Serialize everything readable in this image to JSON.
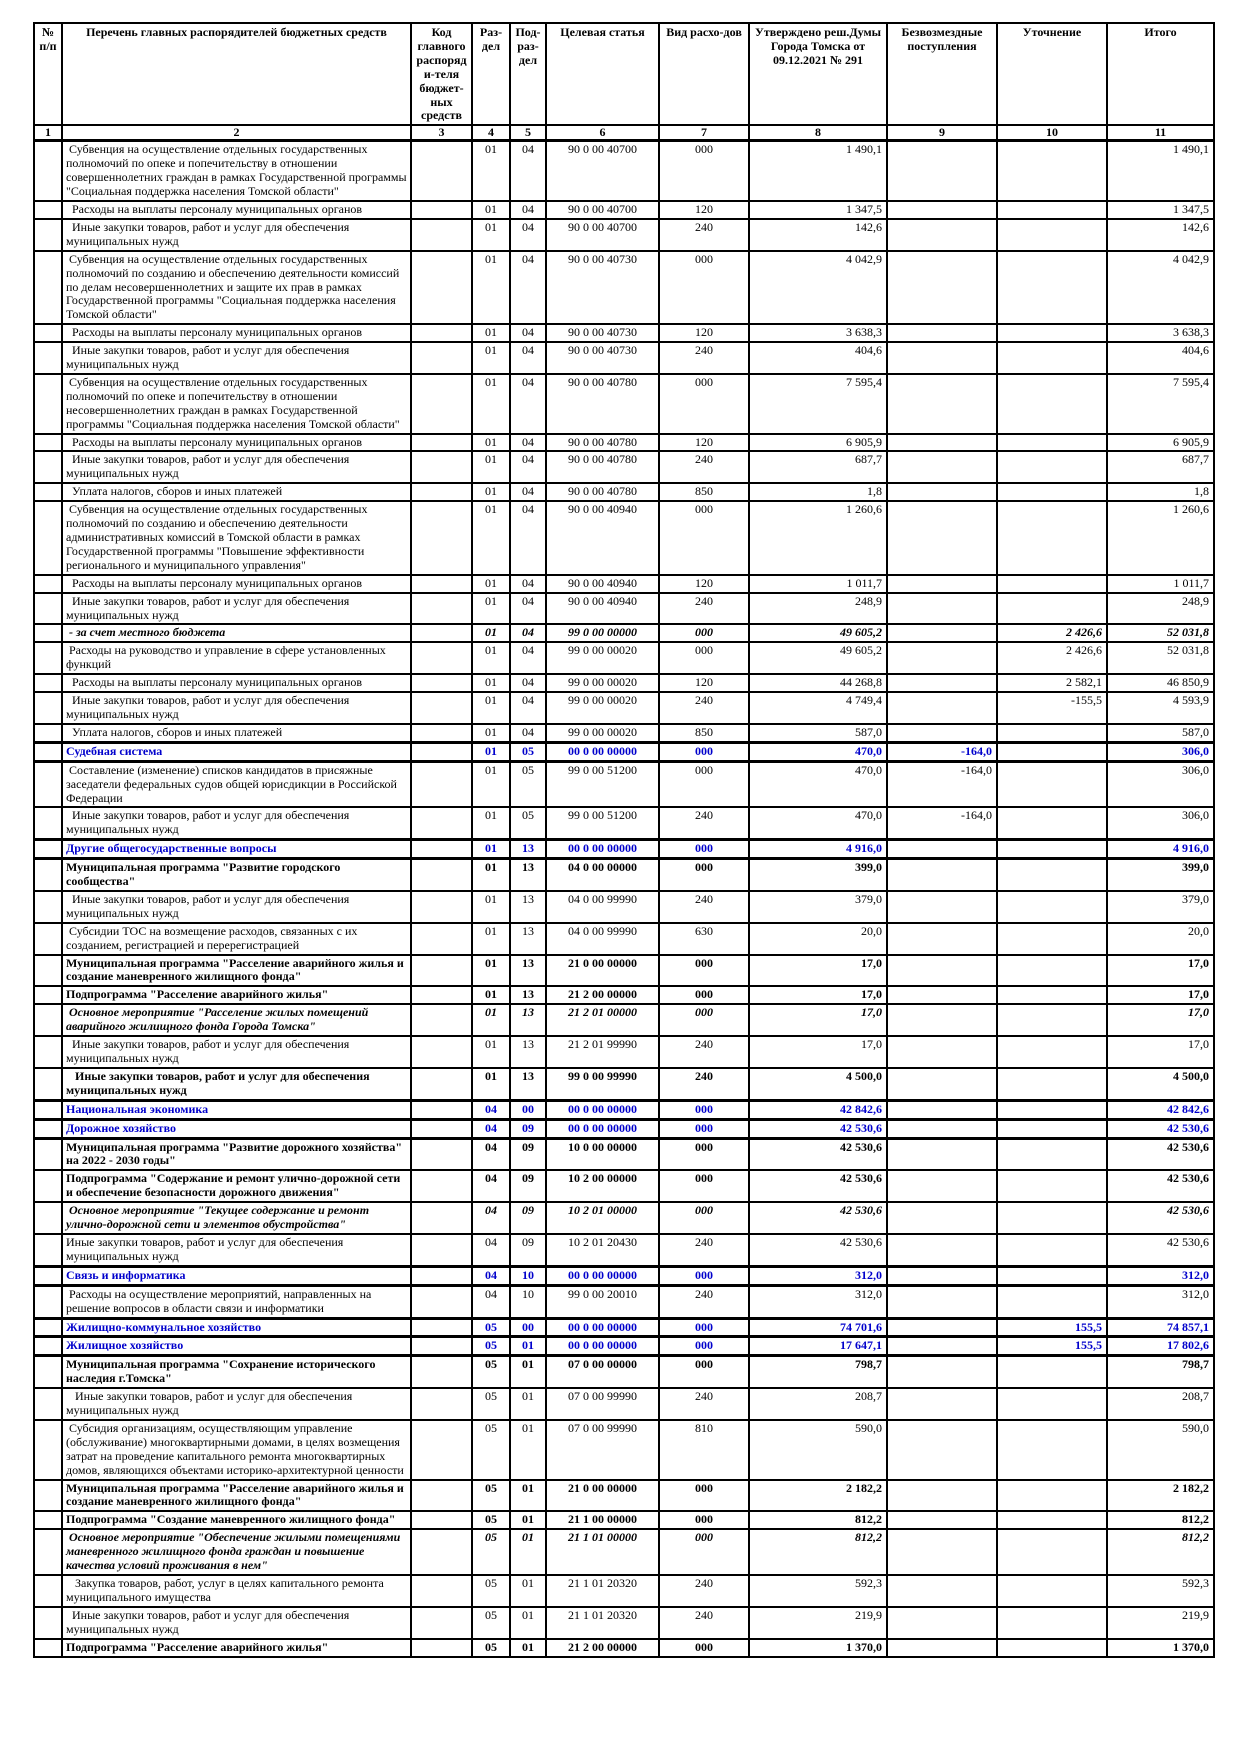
{
  "colors": {
    "section_blue": "#0000CC",
    "border": "#000000",
    "page_bg": "#FFFFFF"
  },
  "table": {
    "columns": [
      {
        "num": "1",
        "label": "№ п/п"
      },
      {
        "num": "2",
        "label": "Перечень главных распорядителей бюджетных средств"
      },
      {
        "num": "3",
        "label": "Код главного распоряди-теля бюджет-ных средств"
      },
      {
        "num": "4",
        "label": "Раз-дел"
      },
      {
        "num": "5",
        "label": "Под-раз-дел"
      },
      {
        "num": "6",
        "label": "Целевая статья"
      },
      {
        "num": "7",
        "label": "Вид расхо-дов"
      },
      {
        "num": "8",
        "label": "Утверждено реш.Думы Города Томска от 09.12.2021 № 291"
      },
      {
        "num": "9",
        "label": "Безвозмездные поступления"
      },
      {
        "num": "10",
        "label": "Уточнение"
      },
      {
        "num": "11",
        "label": "Итого"
      }
    ],
    "rows": [
      {
        "name": " Субвенция на осуществление отдельных государственных полномочий по опеке и попечительству в отношении совершеннолетних граждан в рамках Государственной программы \"Социальная поддержка населения Томской области\"",
        "code": "",
        "rzd": "01",
        "pdr": "04",
        "target": "90 0 00 40700",
        "vid": "000",
        "approved": "1 490,1",
        "gratuitous": "",
        "adjustment": "",
        "total": "1 490,1",
        "style": "normal"
      },
      {
        "name": "  Расходы на выплаты персоналу муниципальных органов",
        "code": "",
        "rzd": "01",
        "pdr": "04",
        "target": "90 0 00 40700",
        "vid": "120",
        "approved": "1 347,5",
        "gratuitous": "",
        "adjustment": "",
        "total": "1 347,5",
        "style": "normal"
      },
      {
        "name": "  Иные закупки товаров, работ и услуг для обеспечения муниципальных нужд",
        "code": "",
        "rzd": "01",
        "pdr": "04",
        "target": "90 0 00 40700",
        "vid": "240",
        "approved": "142,6",
        "gratuitous": "",
        "adjustment": "",
        "total": "142,6",
        "style": "normal"
      },
      {
        "name": " Субвенция на осуществление отдельных государственных полномочий по созданию и обеспечению деятельности комиссий по делам несовершеннолетних и защите их прав в рамках Государственной программы \"Социальная поддержка населения Томской области\"",
        "code": "",
        "rzd": "01",
        "pdr": "04",
        "target": "90 0 00 40730",
        "vid": "000",
        "approved": "4 042,9",
        "gratuitous": "",
        "adjustment": "",
        "total": "4 042,9",
        "style": "normal"
      },
      {
        "name": "  Расходы на выплаты персоналу муниципальных органов",
        "code": "",
        "rzd": "01",
        "pdr": "04",
        "target": "90 0 00 40730",
        "vid": "120",
        "approved": "3 638,3",
        "gratuitous": "",
        "adjustment": "",
        "total": "3 638,3",
        "style": "normal"
      },
      {
        "name": "  Иные закупки товаров, работ и услуг для обеспечения муниципальных нужд",
        "code": "",
        "rzd": "01",
        "pdr": "04",
        "target": "90 0 00 40730",
        "vid": "240",
        "approved": "404,6",
        "gratuitous": "",
        "adjustment": "",
        "total": "404,6",
        "style": "normal"
      },
      {
        "name": " Субвенция на осуществление отдельных государственных полномочий по опеке и попечительству в отношении несовершеннолетних граждан в рамках Государственной программы \"Социальная поддержка населения Томской области\"",
        "code": "",
        "rzd": "01",
        "pdr": "04",
        "target": "90 0 00 40780",
        "vid": "000",
        "approved": "7 595,4",
        "gratuitous": "",
        "adjustment": "",
        "total": "7 595,4",
        "style": "normal"
      },
      {
        "name": "  Расходы на выплаты персоналу муниципальных органов",
        "code": "",
        "rzd": "01",
        "pdr": "04",
        "target": "90 0 00 40780",
        "vid": "120",
        "approved": "6 905,9",
        "gratuitous": "",
        "adjustment": "",
        "total": "6 905,9",
        "style": "normal"
      },
      {
        "name": "  Иные закупки товаров, работ и услуг для обеспечения муниципальных нужд",
        "code": "",
        "rzd": "01",
        "pdr": "04",
        "target": "90 0 00 40780",
        "vid": "240",
        "approved": "687,7",
        "gratuitous": "",
        "adjustment": "",
        "total": "687,7",
        "style": "normal"
      },
      {
        "name": "  Уплата налогов, сборов и иных платежей",
        "code": "",
        "rzd": "01",
        "pdr": "04",
        "target": "90 0 00 40780",
        "vid": "850",
        "approved": "1,8",
        "gratuitous": "",
        "adjustment": "",
        "total": "1,8",
        "style": "normal"
      },
      {
        "name": " Субвенция на осуществление отдельных государственных полномочий по созданию и обеспечению деятельности административных комиссий в Томской области в рамках Государственной программы \"Повышение эффективности регионального и муниципального управления\"",
        "code": "",
        "rzd": "01",
        "pdr": "04",
        "target": "90 0 00 40940",
        "vid": "000",
        "approved": "1 260,6",
        "gratuitous": "",
        "adjustment": "",
        "total": "1 260,6",
        "style": "normal"
      },
      {
        "name": "  Расходы на выплаты персоналу муниципальных органов",
        "code": "",
        "rzd": "01",
        "pdr": "04",
        "target": "90 0 00 40940",
        "vid": "120",
        "approved": "1 011,7",
        "gratuitous": "",
        "adjustment": "",
        "total": "1 011,7",
        "style": "normal"
      },
      {
        "name": "  Иные закупки товаров, работ и услуг для обеспечения муниципальных нужд",
        "code": "",
        "rzd": "01",
        "pdr": "04",
        "target": "90 0 00 40940",
        "vid": "240",
        "approved": "248,9",
        "gratuitous": "",
        "adjustment": "",
        "total": "248,9",
        "style": "normal"
      },
      {
        "name": " - за счет местного бюджета",
        "code": "",
        "rzd": "01",
        "pdr": "04",
        "target": "99 0 00 00000",
        "vid": "000",
        "approved": "49 605,2",
        "gratuitous": "",
        "adjustment": "2 426,6",
        "total": "52 031,8",
        "style": "italic"
      },
      {
        "name": " Расходы на руководство и управление в сфере установленных функций",
        "code": "",
        "rzd": "01",
        "pdr": "04",
        "target": "99 0 00 00020",
        "vid": "000",
        "approved": "49 605,2",
        "gratuitous": "",
        "adjustment": "2 426,6",
        "total": "52 031,8",
        "style": "normal"
      },
      {
        "name": "  Расходы на выплаты персоналу муниципальных органов",
        "code": "",
        "rzd": "01",
        "pdr": "04",
        "target": "99 0 00 00020",
        "vid": "120",
        "approved": "44 268,8",
        "gratuitous": "",
        "adjustment": "2 582,1",
        "total": "46 850,9",
        "style": "normal"
      },
      {
        "name": "  Иные закупки товаров, работ и услуг для обеспечения муниципальных нужд",
        "code": "",
        "rzd": "01",
        "pdr": "04",
        "target": "99 0 00 00020",
        "vid": "240",
        "approved": "4 749,4",
        "gratuitous": "",
        "adjustment": "-155,5",
        "total": "4 593,9",
        "style": "normal"
      },
      {
        "name": "  Уплата налогов, сборов и иных платежей",
        "code": "",
        "rzd": "01",
        "pdr": "04",
        "target": "99 0 00 00020",
        "vid": "850",
        "approved": "587,0",
        "gratuitous": "",
        "adjustment": "",
        "total": "587,0",
        "style": "normal"
      },
      {
        "name": "Судебная система",
        "code": "",
        "rzd": "01",
        "pdr": "05",
        "target": "00 0 00 00000",
        "vid": "000",
        "approved": "470,0",
        "gratuitous": "-164,0",
        "adjustment": "",
        "total": "306,0",
        "style": "section"
      },
      {
        "name": " Составление (изменение) списков кандидатов в присяжные заседатели федеральных судов общей юрисдикции в Российской Федерации",
        "code": "",
        "rzd": "01",
        "pdr": "05",
        "target": "99 0 00 51200",
        "vid": "000",
        "approved": "470,0",
        "gratuitous": "-164,0",
        "adjustment": "",
        "total": "306,0",
        "style": "normal"
      },
      {
        "name": "  Иные закупки товаров, работ и услуг для обеспечения муниципальных нужд",
        "code": "",
        "rzd": "01",
        "pdr": "05",
        "target": "99 0 00 51200",
        "vid": "240",
        "approved": "470,0",
        "gratuitous": "-164,0",
        "adjustment": "",
        "total": "306,0",
        "style": "normal"
      },
      {
        "name": "Другие общегосударственные вопросы",
        "code": "",
        "rzd": "01",
        "pdr": "13",
        "target": "00 0 00 00000",
        "vid": "000",
        "approved": "4 916,0",
        "gratuitous": "",
        "adjustment": "",
        "total": "4 916,0",
        "style": "section"
      },
      {
        "name": "Муниципальная программа \"Развитие городского сообщества\"",
        "code": "",
        "rzd": "01",
        "pdr": "13",
        "target": "04 0 00 00000",
        "vid": "000",
        "approved": "399,0",
        "gratuitous": "",
        "adjustment": "",
        "total": "399,0",
        "style": "bold"
      },
      {
        "name": "  Иные закупки товаров, работ и услуг для обеспечения муниципальных нужд",
        "code": "",
        "rzd": "01",
        "pdr": "13",
        "target": "04 0 00 99990",
        "vid": "240",
        "approved": "379,0",
        "gratuitous": "",
        "adjustment": "",
        "total": "379,0",
        "style": "normal"
      },
      {
        "name": " Субсидии ТОС на возмещение расходов, связанных с их созданием, регистрацией и перерегистрацией",
        "code": "",
        "rzd": "01",
        "pdr": "13",
        "target": "04 0 00 99990",
        "vid": "630",
        "approved": "20,0",
        "gratuitous": "",
        "adjustment": "",
        "total": "20,0",
        "style": "normal"
      },
      {
        "name": "Муниципальная программа \"Расселение аварийного жилья и создание маневренного жилищного фонда\"",
        "code": "",
        "rzd": "01",
        "pdr": "13",
        "target": "21 0 00 00000",
        "vid": "000",
        "approved": "17,0",
        "gratuitous": "",
        "adjustment": "",
        "total": "17,0",
        "style": "bold"
      },
      {
        "name": "Подпрограмма \"Расселение аварийного жилья\"",
        "code": "",
        "rzd": "01",
        "pdr": "13",
        "target": "21 2 00 00000",
        "vid": "000",
        "approved": "17,0",
        "gratuitous": "",
        "adjustment": "",
        "total": "17,0",
        "style": "bold"
      },
      {
        "name": " Основное мероприятие \"Расселение жилых помещений аварийного жилищного фонда Города Томска\"",
        "code": "",
        "rzd": "01",
        "pdr": "13",
        "target": "21 2 01 00000",
        "vid": "000",
        "approved": "17,0",
        "gratuitous": "",
        "adjustment": "",
        "total": "17,0",
        "style": "bold-italic"
      },
      {
        "name": "  Иные закупки товаров, работ и услуг для обеспечения муниципальных нужд",
        "code": "",
        "rzd": "01",
        "pdr": "13",
        "target": "21 2 01 99990",
        "vid": "240",
        "approved": "17,0",
        "gratuitous": "",
        "adjustment": "",
        "total": "17,0",
        "style": "normal"
      },
      {
        "name": "   Иные закупки товаров, работ и услуг для обеспечения муниципальных нужд",
        "code": "",
        "rzd": "01",
        "pdr": "13",
        "target": "99 0 00 99990",
        "vid": "240",
        "approved": "4 500,0",
        "gratuitous": "",
        "adjustment": "",
        "total": "4 500,0",
        "style": "bold"
      },
      {
        "name": "Национальная экономика",
        "code": "",
        "rzd": "04",
        "pdr": "00",
        "target": "00 0 00 00000",
        "vid": "000",
        "approved": "42 842,6",
        "gratuitous": "",
        "adjustment": "",
        "total": "42 842,6",
        "style": "section"
      },
      {
        "name": "Дорожное хозяйство",
        "code": "",
        "rzd": "04",
        "pdr": "09",
        "target": "00 0 00 00000",
        "vid": "000",
        "approved": "42 530,6",
        "gratuitous": "",
        "adjustment": "",
        "total": "42 530,6",
        "style": "section"
      },
      {
        "name": "Муниципальная программа \"Развитие дорожного хозяйства\" на 2022 - 2030 годы\"",
        "code": "",
        "rzd": "04",
        "pdr": "09",
        "target": "10 0 00 00000",
        "vid": "000",
        "approved": "42 530,6",
        "gratuitous": "",
        "adjustment": "",
        "total": "42 530,6",
        "style": "bold"
      },
      {
        "name": "Подпрограмма \"Содержание и ремонт улично-дорожной сети и обеспечение безопасности дорожного движения\"",
        "code": "",
        "rzd": "04",
        "pdr": "09",
        "target": "10 2 00 00000",
        "vid": "000",
        "approved": "42 530,6",
        "gratuitous": "",
        "adjustment": "",
        "total": "42 530,6",
        "style": "bold"
      },
      {
        "name": " Основное мероприятие \"Текущее содержание и ремонт улично-дорожной сети и элементов обустройства\"",
        "code": "",
        "rzd": "04",
        "pdr": "09",
        "target": "10 2 01 00000",
        "vid": "000",
        "approved": "42 530,6",
        "gratuitous": "",
        "adjustment": "",
        "total": "42 530,6",
        "style": "bold-italic"
      },
      {
        "name": "Иные закупки товаров, работ и услуг для обеспечения муниципальных нужд",
        "code": "",
        "rzd": "04",
        "pdr": "09",
        "target": "10 2 01 20430",
        "vid": "240",
        "approved": "42 530,6",
        "gratuitous": "",
        "adjustment": "",
        "total": "42 530,6",
        "style": "normal"
      },
      {
        "name": "Связь и информатика",
        "code": "",
        "rzd": "04",
        "pdr": "10",
        "target": "00 0 00 00000",
        "vid": "000",
        "approved": "312,0",
        "gratuitous": "",
        "adjustment": "",
        "total": "312,0",
        "style": "section"
      },
      {
        "name": " Расходы на осуществление мероприятий, направленных на решение вопросов в области связи и информатики",
        "code": "",
        "rzd": "04",
        "pdr": "10",
        "target": "99 0 00 20010",
        "vid": "240",
        "approved": "312,0",
        "gratuitous": "",
        "adjustment": "",
        "total": "312,0",
        "style": "normal"
      },
      {
        "name": "Жилищно-коммунальное хозяйство",
        "code": "",
        "rzd": "05",
        "pdr": "00",
        "target": "00 0 00 00000",
        "vid": "000",
        "approved": "74 701,6",
        "gratuitous": "",
        "adjustment": "155,5",
        "total": "74 857,1",
        "style": "section"
      },
      {
        "name": "Жилищное хозяйство",
        "code": "",
        "rzd": "05",
        "pdr": "01",
        "target": "00 0 00 00000",
        "vid": "000",
        "approved": "17 647,1",
        "gratuitous": "",
        "adjustment": "155,5",
        "total": "17 802,6",
        "style": "section"
      },
      {
        "name": "Муниципальная программа \"Сохранение исторического наследия г.Томска\"",
        "code": "",
        "rzd": "05",
        "pdr": "01",
        "target": "07 0 00 00000",
        "vid": "000",
        "approved": "798,7",
        "gratuitous": "",
        "adjustment": "",
        "total": "798,7",
        "style": "bold"
      },
      {
        "name": "   Иные закупки товаров, работ и услуг для обеспечения муниципальных нужд",
        "code": "",
        "rzd": "05",
        "pdr": "01",
        "target": "07 0 00 99990",
        "vid": "240",
        "approved": "208,7",
        "gratuitous": "",
        "adjustment": "",
        "total": "208,7",
        "style": "normal"
      },
      {
        "name": " Субсидия организациям, осуществляющим управление (обслуживание) многоквартирными домами, в целях возмещения затрат на проведение капитального ремонта многоквартирных домов, являющихся объектами историко-архитектурной ценности",
        "code": "",
        "rzd": "05",
        "pdr": "01",
        "target": "07 0 00 99990",
        "vid": "810",
        "approved": "590,0",
        "gratuitous": "",
        "adjustment": "",
        "total": "590,0",
        "style": "normal"
      },
      {
        "name": "Муниципальная программа \"Расселение аварийного жилья и создание маневренного жилищного фонда\"",
        "code": "",
        "rzd": "05",
        "pdr": "01",
        "target": "21 0 00 00000",
        "vid": "000",
        "approved": "2 182,2",
        "gratuitous": "",
        "adjustment": "",
        "total": "2 182,2",
        "style": "bold"
      },
      {
        "name": "Подпрограмма \"Создание маневренного жилищного фонда\"",
        "code": "",
        "rzd": "05",
        "pdr": "01",
        "target": "21 1 00 00000",
        "vid": "000",
        "approved": "812,2",
        "gratuitous": "",
        "adjustment": "",
        "total": "812,2",
        "style": "bold"
      },
      {
        "name": " Основное мероприятие \"Обеспечение жилыми помещениями маневренного жилищного фонда граждан и повышение качества условий проживания в нем\"",
        "code": "",
        "rzd": "05",
        "pdr": "01",
        "target": "21 1 01 00000",
        "vid": "000",
        "approved": "812,2",
        "gratuitous": "",
        "adjustment": "",
        "total": "812,2",
        "style": "bold-italic"
      },
      {
        "name": "   Закупка товаров, работ, услуг в целях капитального ремонта муниципального имущества",
        "code": "",
        "rzd": "05",
        "pdr": "01",
        "target": "21 1 01 20320",
        "vid": "240",
        "approved": "592,3",
        "gratuitous": "",
        "adjustment": "",
        "total": "592,3",
        "style": "normal"
      },
      {
        "name": "  Иные закупки товаров, работ и услуг для обеспечения муниципальных нужд",
        "code": "",
        "rzd": "05",
        "pdr": "01",
        "target": "21 1 01 20320",
        "vid": "240",
        "approved": "219,9",
        "gratuitous": "",
        "adjustment": "",
        "total": "219,9",
        "style": "normal"
      },
      {
        "name": "Подпрограмма \"Расселение аварийного жилья\"",
        "code": "",
        "rzd": "05",
        "pdr": "01",
        "target": "21 2 00 00000",
        "vid": "000",
        "approved": "1 370,0",
        "gratuitous": "",
        "adjustment": "",
        "total": "1 370,0",
        "style": "bold"
      }
    ]
  }
}
